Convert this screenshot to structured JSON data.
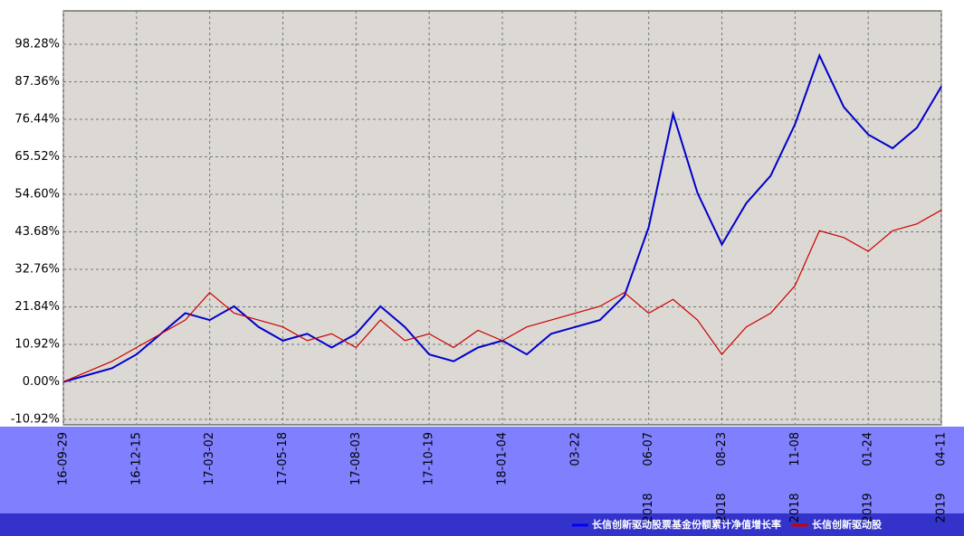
{
  "chart_data": {
    "type": "line",
    "categories": [
      "16-09-29",
      null,
      null,
      "16-12-15",
      null,
      null,
      "17-03-02",
      null,
      null,
      "17-05-18",
      null,
      null,
      "17-08-03",
      null,
      null,
      "17-10-19",
      null,
      null,
      "18-01-04",
      null,
      null,
      "03-22",
      null,
      null,
      "06-07",
      null,
      null,
      "08-23",
      null,
      null,
      "11-08",
      null,
      null,
      "01-24",
      null,
      null,
      "04-11"
    ],
    "years": [
      null,
      null,
      null,
      null,
      null,
      null,
      null,
      null,
      null,
      null,
      null,
      null,
      null,
      null,
      null,
      null,
      null,
      null,
      null,
      null,
      null,
      null,
      null,
      null,
      "2018",
      null,
      null,
      "2018",
      null,
      null,
      "2018",
      null,
      null,
      "2019",
      null,
      null,
      "2019"
    ],
    "series": [
      {
        "name": "长信创新驱动股票基金份额累计净值增长率",
        "color": "#0000cc",
        "values": [
          0,
          2,
          4,
          8,
          14,
          20,
          18,
          22,
          16,
          12,
          14,
          10,
          14,
          22,
          16,
          8,
          6,
          10,
          12,
          8,
          14,
          16,
          18,
          25,
          45,
          78,
          55,
          40,
          52,
          60,
          75,
          95,
          80,
          72,
          68,
          74,
          86
        ]
      },
      {
        "name": "长信创新驱动股",
        "color": "#cc0000",
        "values": [
          0,
          3,
          6,
          10,
          14,
          18,
          26,
          20,
          18,
          16,
          12,
          14,
          10,
          18,
          12,
          14,
          10,
          15,
          12,
          16,
          18,
          20,
          22,
          26,
          20,
          24,
          18,
          8,
          16,
          20,
          28,
          44,
          42,
          38,
          44,
          46,
          50
        ]
      }
    ],
    "ylim": [
      -12.5,
      108
    ],
    "yticks": [
      {
        "value": -10.92,
        "label": "-10.92%"
      },
      {
        "value": 0,
        "label": "0.00%"
      },
      {
        "value": 10.92,
        "label": "10.92%"
      },
      {
        "value": 21.84,
        "label": "21.84%"
      },
      {
        "value": 32.76,
        "label": "32.76%"
      },
      {
        "value": 43.68,
        "label": "43.68%"
      },
      {
        "value": 54.6,
        "label": "54.60%"
      },
      {
        "value": 65.52,
        "label": "65.52%"
      },
      {
        "value": 76.44,
        "label": "76.44%"
      },
      {
        "value": 87.36,
        "label": "87.36%"
      },
      {
        "value": 98.28,
        "label": "98.28%"
      }
    ],
    "grid": true
  }
}
